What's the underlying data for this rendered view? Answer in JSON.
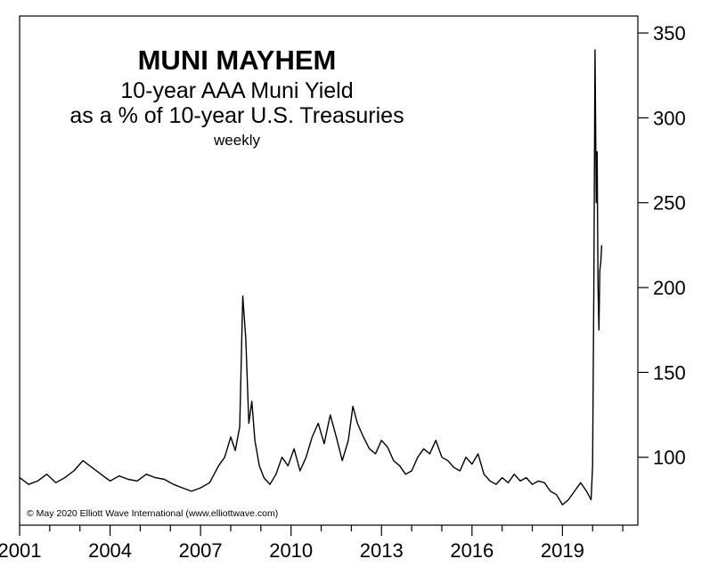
{
  "chart_data": {
    "type": "line",
    "title": "MUNI MAYHEM",
    "subtitle_lines": [
      "10-year AAA Muni Yield",
      "as a % of 10-year U.S. Treasuries"
    ],
    "frequency_note": "weekly",
    "credit": "© May 2020 Elliott Wave International (www.elliottwave.com)",
    "xlabel": "",
    "ylabel": "",
    "x_ticks": [
      "2001",
      "2004",
      "2007",
      "2010",
      "2013",
      "2016",
      "2019"
    ],
    "y_ticks": [
      "100",
      "150",
      "200",
      "250",
      "300",
      "350"
    ],
    "xlim": [
      2001,
      2021.5
    ],
    "ylim": [
      60,
      360
    ],
    "y_axis_side": "right",
    "grid": false,
    "series": [
      {
        "color": "#000000",
        "x": [
          2001.0,
          2001.3,
          2001.6,
          2001.9,
          2002.2,
          2002.5,
          2002.8,
          2003.1,
          2003.4,
          2003.7,
          2004.0,
          2004.3,
          2004.6,
          2004.9,
          2005.2,
          2005.5,
          2005.8,
          2006.1,
          2006.4,
          2006.7,
          2007.0,
          2007.3,
          2007.6,
          2007.8,
          2008.0,
          2008.15,
          2008.3,
          2008.4,
          2008.5,
          2008.6,
          2008.7,
          2008.8,
          2008.95,
          2009.1,
          2009.3,
          2009.5,
          2009.7,
          2009.9,
          2010.1,
          2010.3,
          2010.5,
          2010.7,
          2010.9,
          2011.1,
          2011.3,
          2011.5,
          2011.7,
          2011.9,
          2012.05,
          2012.2,
          2012.4,
          2012.6,
          2012.8,
          2013.0,
          2013.2,
          2013.4,
          2013.6,
          2013.8,
          2014.0,
          2014.2,
          2014.4,
          2014.6,
          2014.8,
          2015.0,
          2015.2,
          2015.4,
          2015.6,
          2015.8,
          2016.0,
          2016.2,
          2016.4,
          2016.6,
          2016.8,
          2017.0,
          2017.2,
          2017.4,
          2017.6,
          2017.8,
          2018.0,
          2018.2,
          2018.4,
          2018.6,
          2018.8,
          2019.0,
          2019.2,
          2019.4,
          2019.6,
          2019.8,
          2019.95,
          2020.0,
          2020.04,
          2020.08,
          2020.12,
          2020.15,
          2020.18,
          2020.21,
          2020.24,
          2020.27,
          2020.3
        ],
        "values": [
          88,
          84,
          86,
          90,
          85,
          88,
          92,
          98,
          94,
          90,
          86,
          89,
          87,
          86,
          90,
          88,
          87,
          84,
          82,
          80,
          82,
          85,
          95,
          100,
          112,
          104,
          118,
          195,
          170,
          120,
          133,
          110,
          95,
          88,
          84,
          90,
          100,
          95,
          105,
          92,
          100,
          112,
          120,
          108,
          125,
          112,
          98,
          110,
          130,
          120,
          112,
          105,
          102,
          110,
          106,
          98,
          95,
          90,
          92,
          100,
          105,
          102,
          110,
          100,
          98,
          94,
          92,
          100,
          96,
          102,
          90,
          86,
          84,
          88,
          85,
          90,
          86,
          88,
          84,
          86,
          85,
          80,
          78,
          72,
          75,
          80,
          85,
          80,
          75,
          95,
          200,
          340,
          250,
          280,
          200,
          175,
          210,
          215,
          225
        ]
      }
    ]
  }
}
